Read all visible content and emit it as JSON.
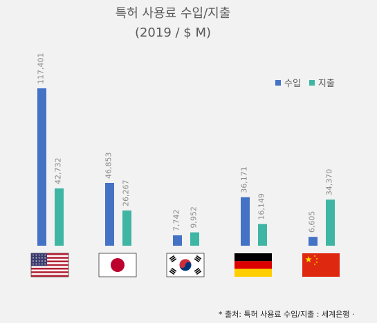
{
  "title": "특허 사용료 수입/지출",
  "subtitle": "(2019 / $ M)",
  "source_note": "* 출처: 특허 사용료 수입/지출 : 세계은행 ·",
  "colors": {
    "import": "#4472c4",
    "export": "#3fb5a3",
    "label": "#8c8c8c"
  },
  "chart_data": {
    "type": "bar",
    "title": "특허 사용료 수입/지출",
    "subtitle": "(2019 / $ M)",
    "categories": [
      "US-flag",
      "JP-flag",
      "KR-flag",
      "DE-flag",
      "CN-flag"
    ],
    "series": [
      {
        "name": "수입",
        "values": [
          117401,
          46853,
          7742,
          36171,
          6605
        ],
        "labels": [
          "117,401",
          "46,853",
          "7,742",
          "36,171",
          "6,605"
        ]
      },
      {
        "name": "지출",
        "values": [
          42732,
          26267,
          9952,
          16149,
          34370
        ],
        "labels": [
          "42,732",
          "26,267",
          "9,952",
          "16,149",
          "34,370"
        ]
      }
    ],
    "ylim": [
      0,
      117401
    ],
    "legend": "top-right",
    "grid": false
  }
}
